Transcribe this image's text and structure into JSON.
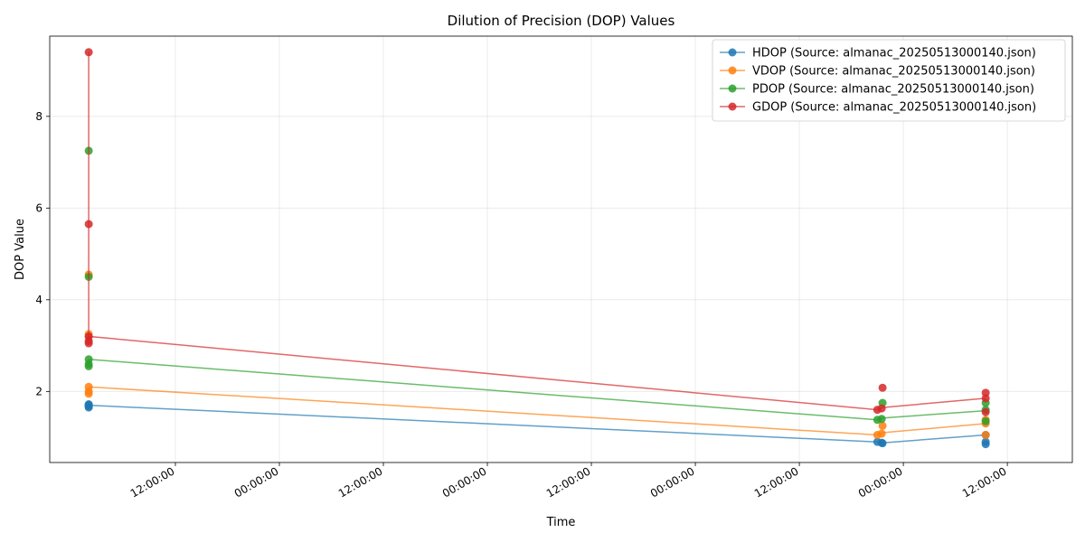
{
  "chart_data": {
    "type": "line",
    "title": "Dilution of Precision (DOP) Values",
    "xlabel": "Time",
    "ylabel": "DOP Value",
    "x_tick_labels": [
      "12:00:00",
      "00:00:00",
      "12:00:00",
      "00:00:00",
      "12:00:00",
      "00:00:00",
      "12:00:00",
      "00:00:00",
      "12:00:00"
    ],
    "y_ticks": [
      2,
      4,
      6,
      8
    ],
    "ylim": [
      0.45,
      9.75
    ],
    "xlim_hours": [
      -4.5,
      113.5
    ],
    "grid": true,
    "legend_position": "top-right",
    "colors": {
      "HDOP": "#1f77b4",
      "VDOP": "#ff7f0e",
      "PDOP": "#2ca02c",
      "GDOP": "#d62728"
    },
    "series": [
      {
        "name": "HDOP (Source: almanac_20250513000140.json)",
        "color": "#1f77b4",
        "line": [
          [
            0,
            1.7
          ],
          [
            91,
            0.9
          ],
          [
            91.6,
            0.88
          ],
          [
            103.5,
            1.05
          ]
        ],
        "points": [
          [
            0,
            1.65
          ],
          [
            0,
            1.68
          ],
          [
            0,
            1.7
          ],
          [
            0,
            1.72
          ],
          [
            91,
            0.9
          ],
          [
            91.5,
            0.88
          ],
          [
            91.6,
            0.87
          ],
          [
            103.5,
            0.85
          ],
          [
            103.5,
            0.9
          ],
          [
            103.5,
            1.05
          ]
        ]
      },
      {
        "name": "VDOP (Source: almanac_20250513000140.json)",
        "color": "#ff7f0e",
        "line": [
          [
            0,
            2.1
          ],
          [
            91,
            1.05
          ],
          [
            91.6,
            1.1
          ],
          [
            103.5,
            1.3
          ]
        ],
        "points": [
          [
            0,
            1.95
          ],
          [
            0,
            2.0
          ],
          [
            0,
            2.1
          ],
          [
            0,
            3.2
          ],
          [
            0,
            3.25
          ],
          [
            0,
            4.55
          ],
          [
            91,
            1.05
          ],
          [
            91.5,
            1.08
          ],
          [
            91.6,
            1.25
          ],
          [
            103.5,
            1.05
          ],
          [
            103.5,
            1.3
          ],
          [
            103.5,
            1.38
          ]
        ]
      },
      {
        "name": "PDOP (Source: almanac_20250513000140.json)",
        "color": "#2ca02c",
        "line": [
          [
            0,
            2.7
          ],
          [
            91,
            1.38
          ],
          [
            91.6,
            1.42
          ],
          [
            103.5,
            1.58
          ]
        ],
        "points": [
          [
            0,
            2.55
          ],
          [
            0,
            2.6
          ],
          [
            0,
            2.7
          ],
          [
            0,
            4.5
          ],
          [
            0,
            7.25
          ],
          [
            91,
            1.38
          ],
          [
            91.5,
            1.4
          ],
          [
            91.6,
            1.75
          ],
          [
            103.5,
            1.35
          ],
          [
            103.5,
            1.6
          ],
          [
            103.5,
            1.75
          ]
        ]
      },
      {
        "name": "GDOP (Source: almanac_20250513000140.json)",
        "color": "#d62728",
        "line": [
          [
            0,
            9.4
          ],
          [
            0,
            3.2
          ],
          [
            91,
            1.6
          ],
          [
            91.6,
            1.65
          ],
          [
            103.5,
            1.85
          ]
        ],
        "points": [
          [
            0,
            3.05
          ],
          [
            0,
            3.1
          ],
          [
            0,
            3.2
          ],
          [
            0,
            5.65
          ],
          [
            0,
            9.4
          ],
          [
            91,
            1.6
          ],
          [
            91.5,
            1.63
          ],
          [
            91.6,
            2.08
          ],
          [
            103.5,
            1.55
          ],
          [
            103.5,
            1.85
          ],
          [
            103.5,
            1.97
          ]
        ]
      }
    ]
  }
}
